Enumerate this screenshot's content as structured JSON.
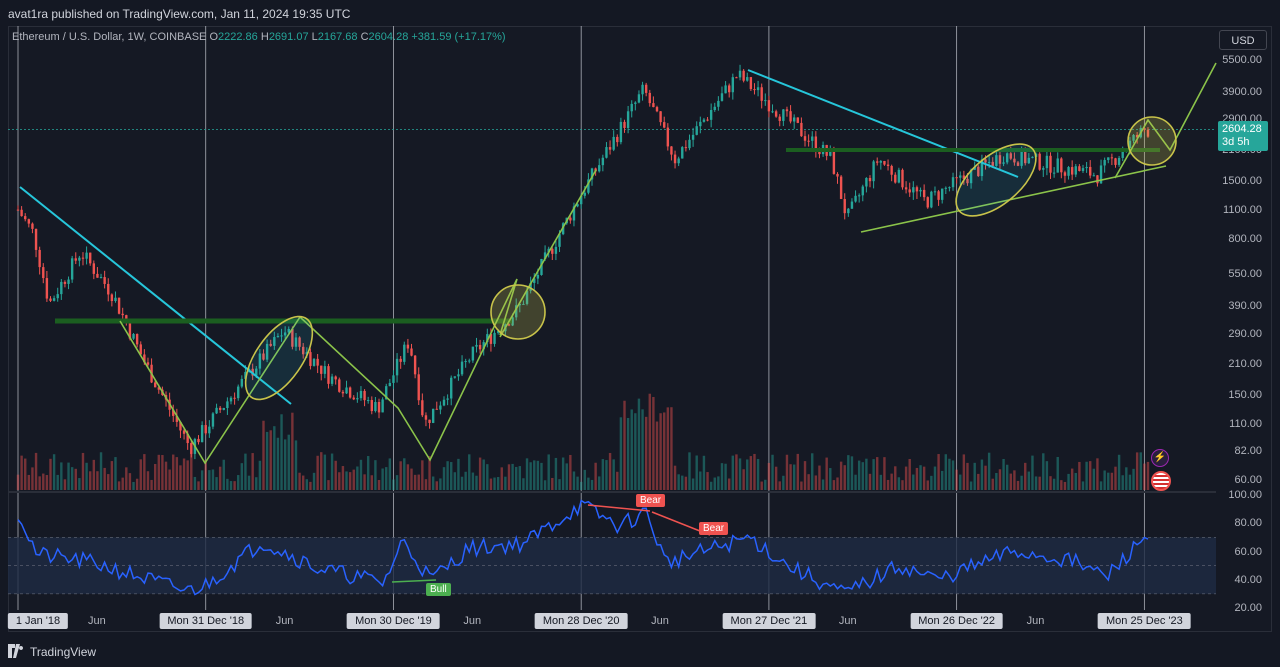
{
  "header": {
    "published": "avat1ra published on TradingView.com, Jan 11, 2024 19:35 UTC"
  },
  "legend": {
    "symbol": "Ethereum / U.S. Dollar, 1W, COINBASE",
    "o_label": "O",
    "o": "2222.86",
    "h_label": "H",
    "h": "2691.07",
    "l_label": "L",
    "l": "2167.68",
    "c_label": "C",
    "c": "2604.28",
    "change": "+381.59 (+17.17%)"
  },
  "currency": "USD",
  "price_tag": {
    "price": "2604.28",
    "countdown": "3d 5h"
  },
  "price_axis": [
    "5500.00",
    "3900.00",
    "2900.00",
    "2100.00",
    "1500.00",
    "1100.00",
    "800.00",
    "550.00",
    "390.00",
    "290.00",
    "210.00",
    "150.00",
    "110.00",
    "82.00",
    "60.00"
  ],
  "rsi_axis": [
    "100.00",
    "80.00",
    "60.00",
    "40.00",
    "20.00"
  ],
  "time_axis": [
    {
      "label": "1 Jan '18",
      "hl": true
    },
    {
      "label": "Jun",
      "hl": false
    },
    {
      "label": "Mon 31 Dec '18",
      "hl": true
    },
    {
      "label": "Jun",
      "hl": false
    },
    {
      "label": "Mon 30 Dec '19",
      "hl": true
    },
    {
      "label": "Jun",
      "hl": false
    },
    {
      "label": "Mon 28 Dec '20",
      "hl": true
    },
    {
      "label": "Jun",
      "hl": false
    },
    {
      "label": "Mon 27 Dec '21",
      "hl": true
    },
    {
      "label": "Jun",
      "hl": false
    },
    {
      "label": "Mon 26 Dec '22",
      "hl": true
    },
    {
      "label": "Jun",
      "hl": false
    },
    {
      "label": "Mon 25 Dec '23",
      "hl": true
    }
  ],
  "rsi_labels": {
    "bull": "Bull",
    "bear1": "Bear",
    "bear2": "Bear"
  },
  "footer": {
    "brand": "TradingView"
  },
  "colors": {
    "up": "#26a69a",
    "down": "#ef5350",
    "rsi": "#2962ff",
    "trend_blue": "#26c6da",
    "trend_green": "#8bc34a",
    "support": "#1b5e20",
    "ellipse": "#c8c34a"
  },
  "chart_data": {
    "type": "candlestick",
    "title": "Ethereum / U.S. Dollar, 1W, COINBASE",
    "scale": "log",
    "ylim": [
      55,
      6000
    ],
    "close_path": [
      [
        "2018-01",
        1100
      ],
      [
        "2018-02",
        850
      ],
      [
        "2018-03",
        400
      ],
      [
        "2018-05",
        700
      ],
      [
        "2018-07",
        450
      ],
      [
        "2018-09",
        220
      ],
      [
        "2018-12",
        85
      ],
      [
        "2019-02",
        130
      ],
      [
        "2019-06",
        300
      ],
      [
        "2019-09",
        180
      ],
      [
        "2019-12",
        130
      ],
      [
        "2020-02",
        270
      ],
      [
        "2020-03",
        110
      ],
      [
        "2020-06",
        230
      ],
      [
        "2020-09",
        380
      ],
      [
        "2021-01",
        1300
      ],
      [
        "2021-05",
        4000
      ],
      [
        "2021-07",
        1900
      ],
      [
        "2021-11",
        4700
      ],
      [
        "2022-05",
        1900
      ],
      [
        "2022-06",
        1000
      ],
      [
        "2022-08",
        1900
      ],
      [
        "2022-11",
        1200
      ],
      [
        "2023-04",
        2000
      ],
      [
        "2023-10",
        1600
      ],
      [
        "2024-01",
        2604.28
      ]
    ],
    "rsi_range": [
      20,
      100
    ],
    "rsi_bands": [
      30,
      70
    ]
  }
}
